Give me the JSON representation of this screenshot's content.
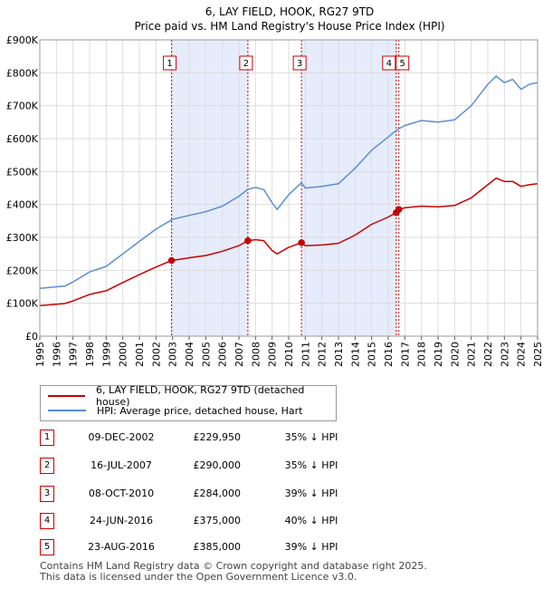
{
  "chart_data": {
    "type": "line",
    "title": "6, LAY FIELD, HOOK, RG27 9TD",
    "subtitle": "Price paid vs. HM Land Registry's House Price Index (HPI)",
    "xlim": [
      1995,
      2025
    ],
    "ylim": [
      0,
      900000
    ],
    "x_tick_labels": [
      "1995",
      "1996",
      "1997",
      "1998",
      "1999",
      "2000",
      "2001",
      "2002",
      "2003",
      "2004",
      "2005",
      "2006",
      "2007",
      "2008",
      "2009",
      "2010",
      "2011",
      "2012",
      "2013",
      "2014",
      "2015",
      "2016",
      "2017",
      "2018",
      "2019",
      "2020",
      "2021",
      "2022",
      "2023",
      "2024",
      "2025"
    ],
    "y_tick_labels": [
      "£0",
      "£100K",
      "£200K",
      "£300K",
      "£400K",
      "£500K",
      "£600K",
      "£700K",
      "£800K",
      "£900K"
    ],
    "y_tick_values": [
      0,
      100000,
      200000,
      300000,
      400000,
      500000,
      600000,
      700000,
      800000,
      900000
    ],
    "grid": true,
    "series": [
      {
        "name": "6, LAY FIELD, HOOK, RG27 9TD (detached house)",
        "color": "#cc0000",
        "x": [
          1995,
          1996,
          1996.5,
          1997,
          1998,
          1999,
          2000,
          2001,
          2002,
          2002.94,
          2003,
          2004,
          2005,
          2006,
          2007,
          2007.54,
          2008,
          2008.5,
          2009,
          2009.3,
          2010,
          2010.77,
          2011,
          2012,
          2013,
          2014,
          2015,
          2016,
          2016.48,
          2016.64,
          2017,
          2018,
          2019,
          2020,
          2021,
          2022,
          2022.5,
          2023,
          2023.5,
          2024,
          2024.5,
          2025
        ],
        "y": [
          93000,
          97000,
          99000,
          107000,
          127000,
          138000,
          163000,
          187000,
          210000,
          229950,
          230000,
          238000,
          245000,
          258000,
          275000,
          290000,
          293000,
          290000,
          260000,
          250000,
          270000,
          284000,
          275000,
          277000,
          282000,
          307000,
          340000,
          362000,
          375000,
          385000,
          390000,
          395000,
          393000,
          397000,
          420000,
          460000,
          480000,
          470000,
          470000,
          455000,
          460000,
          463000
        ]
      },
      {
        "name": "HPI: Average price, detached house, Hart",
        "color": "#5b8ed6",
        "x": [
          1995,
          1996,
          1996.5,
          1997,
          1998,
          1999,
          2000,
          2001,
          2002,
          2002.94,
          2003,
          2004,
          2005,
          2006,
          2007,
          2007.54,
          2008,
          2008.5,
          2009,
          2009.3,
          2010,
          2010.77,
          2011,
          2012,
          2013,
          2014,
          2015,
          2016,
          2016.48,
          2016.64,
          2017,
          2018,
          2019,
          2020,
          2021,
          2022,
          2022.5,
          2023,
          2023.5,
          2024,
          2024.5,
          2025
        ],
        "y": [
          145000,
          150000,
          152000,
          165000,
          195000,
          212000,
          250000,
          288000,
          325000,
          353000,
          355000,
          367000,
          378000,
          395000,
          425000,
          446000,
          452000,
          445000,
          405000,
          385000,
          430000,
          466000,
          450000,
          455000,
          463000,
          510000,
          565000,
          605000,
          625000,
          630000,
          640000,
          655000,
          650000,
          657000,
          700000,
          765000,
          790000,
          770000,
          780000,
          750000,
          765000,
          770000
        ]
      }
    ],
    "sales": [
      {
        "label": "1",
        "x": 2002.94,
        "price": 229950
      },
      {
        "label": "2",
        "x": 2007.54,
        "price": 290000
      },
      {
        "label": "3",
        "x": 2010.77,
        "price": 284000
      },
      {
        "label": "4",
        "x": 2016.48,
        "price": 375000
      },
      {
        "label": "5",
        "x": 2016.64,
        "price": 385000
      }
    ],
    "shaded_ranges": [
      [
        2002.94,
        2007.54
      ],
      [
        2010.77,
        2016.48
      ]
    ]
  },
  "legend": {
    "property": "6, LAY FIELD, HOOK, RG27 9TD (detached house)",
    "hpi": "HPI: Average price, detached house, Hart"
  },
  "transactions": [
    {
      "num": "1",
      "date": "09-DEC-2002",
      "price": "£229,950",
      "pct": "35% ↓ HPI"
    },
    {
      "num": "2",
      "date": "16-JUL-2007",
      "price": "£290,000",
      "pct": "35% ↓ HPI"
    },
    {
      "num": "3",
      "date": "08-OCT-2010",
      "price": "£284,000",
      "pct": "39% ↓ HPI"
    },
    {
      "num": "4",
      "date": "24-JUN-2016",
      "price": "£375,000",
      "pct": "40% ↓ HPI"
    },
    {
      "num": "5",
      "date": "23-AUG-2016",
      "price": "£385,000",
      "pct": "39% ↓ HPI"
    }
  ],
  "footer": {
    "line1": "Contains HM Land Registry data © Crown copyright and database right 2025.",
    "line2": "This data is licensed under the Open Government Licence v3.0."
  },
  "colors": {
    "property": "#cc0000",
    "hpi": "#5b8ed6",
    "shade": "#e6ecfb",
    "marker_border": "#cc0000"
  }
}
